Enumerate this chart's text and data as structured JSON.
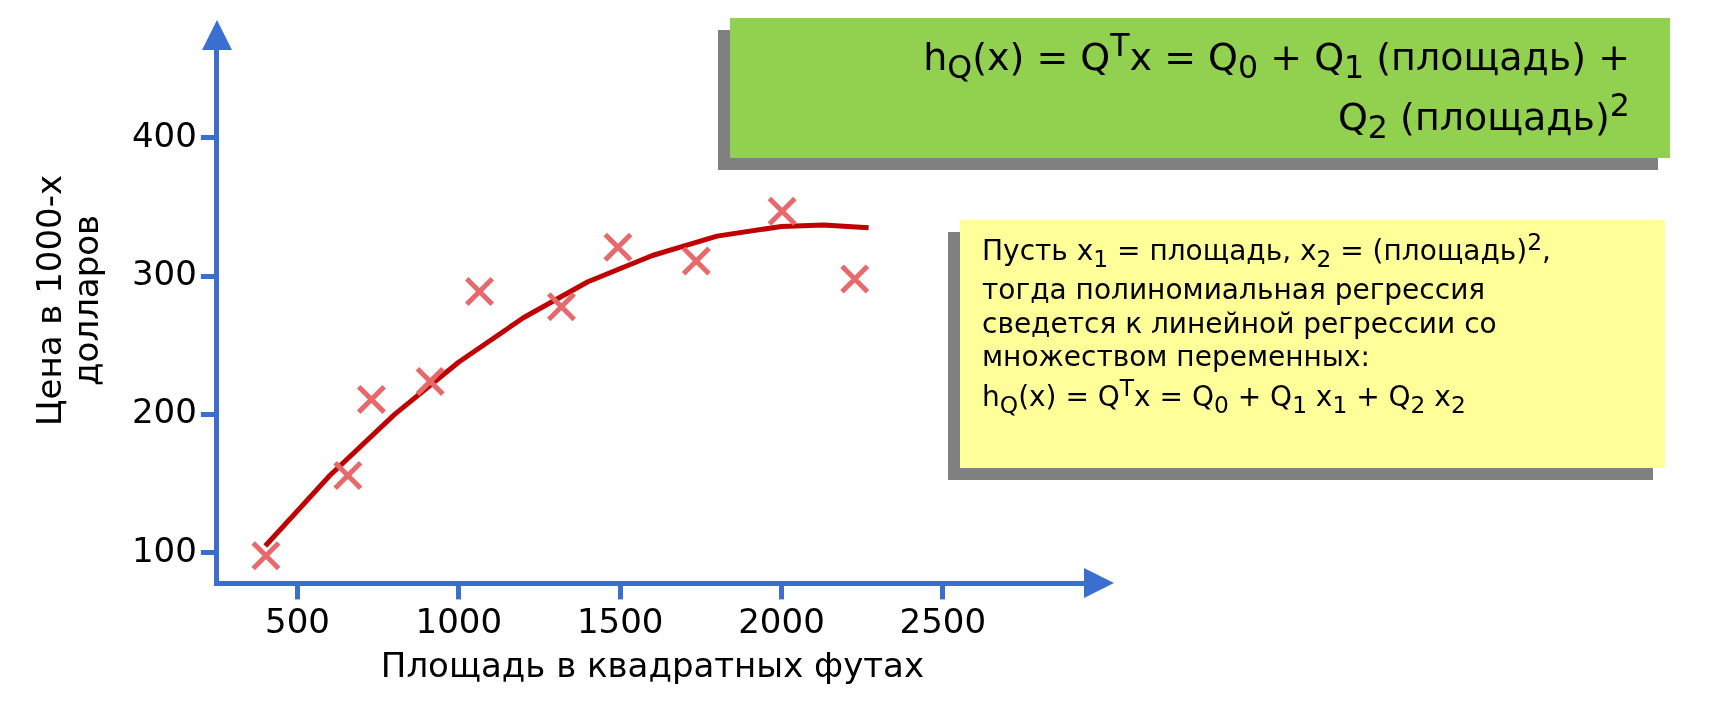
{
  "chart_data": {
    "type": "scatter",
    "xlabel": "Площадь в квадратных футах",
    "ylabel": "Цена в 1000-х долларов",
    "xlim": [
      250,
      2950
    ],
    "ylim": [
      78,
      465
    ],
    "xticks": [
      500,
      1000,
      1500,
      2000,
      2500
    ],
    "yticks": [
      100,
      200,
      300,
      400
    ],
    "legend": false,
    "series": [
      {
        "type": "scatter",
        "color": "#e8696b",
        "marker": "cross",
        "x": [
          402,
          656,
          729,
          911,
          1064,
          1318,
          1493,
          1736,
          2002,
          2227
        ],
        "values": [
          98,
          156,
          211,
          224,
          289,
          278,
          321,
          311,
          347,
          298
        ]
      },
      {
        "type": "line",
        "color": "#c00000",
        "marker": "none",
        "line_style": "solid",
        "x": [
          400,
          600,
          800,
          1000,
          1200,
          1400,
          1600,
          1800,
          2000,
          2130,
          2270
        ],
        "values": [
          105,
          156,
          200,
          238,
          270,
          296,
          315,
          329,
          336,
          337,
          335
        ]
      }
    ],
    "annotations": [
      "h$_{Q}$(x) = Q$^{T}$x = Q$_{0}$ + Q$_{1}$ (площадь) +\nQ$_{2}$ (площадь)$^{2}$",
      "Пусть x$_{1}$ = площадь, x$_{2}$ = (площадь)$^{2}$,\nтогда полиномиальная регрессия\nсведется к линейной регрессии со\nмножеством переменных:\nh$_{Q}$(x) = Q$^{T}$x = Q$_{0}$ + Q$_{1}$ x$_{1}$ + Q$_{2}$ x$_{2}$"
    ]
  }
}
